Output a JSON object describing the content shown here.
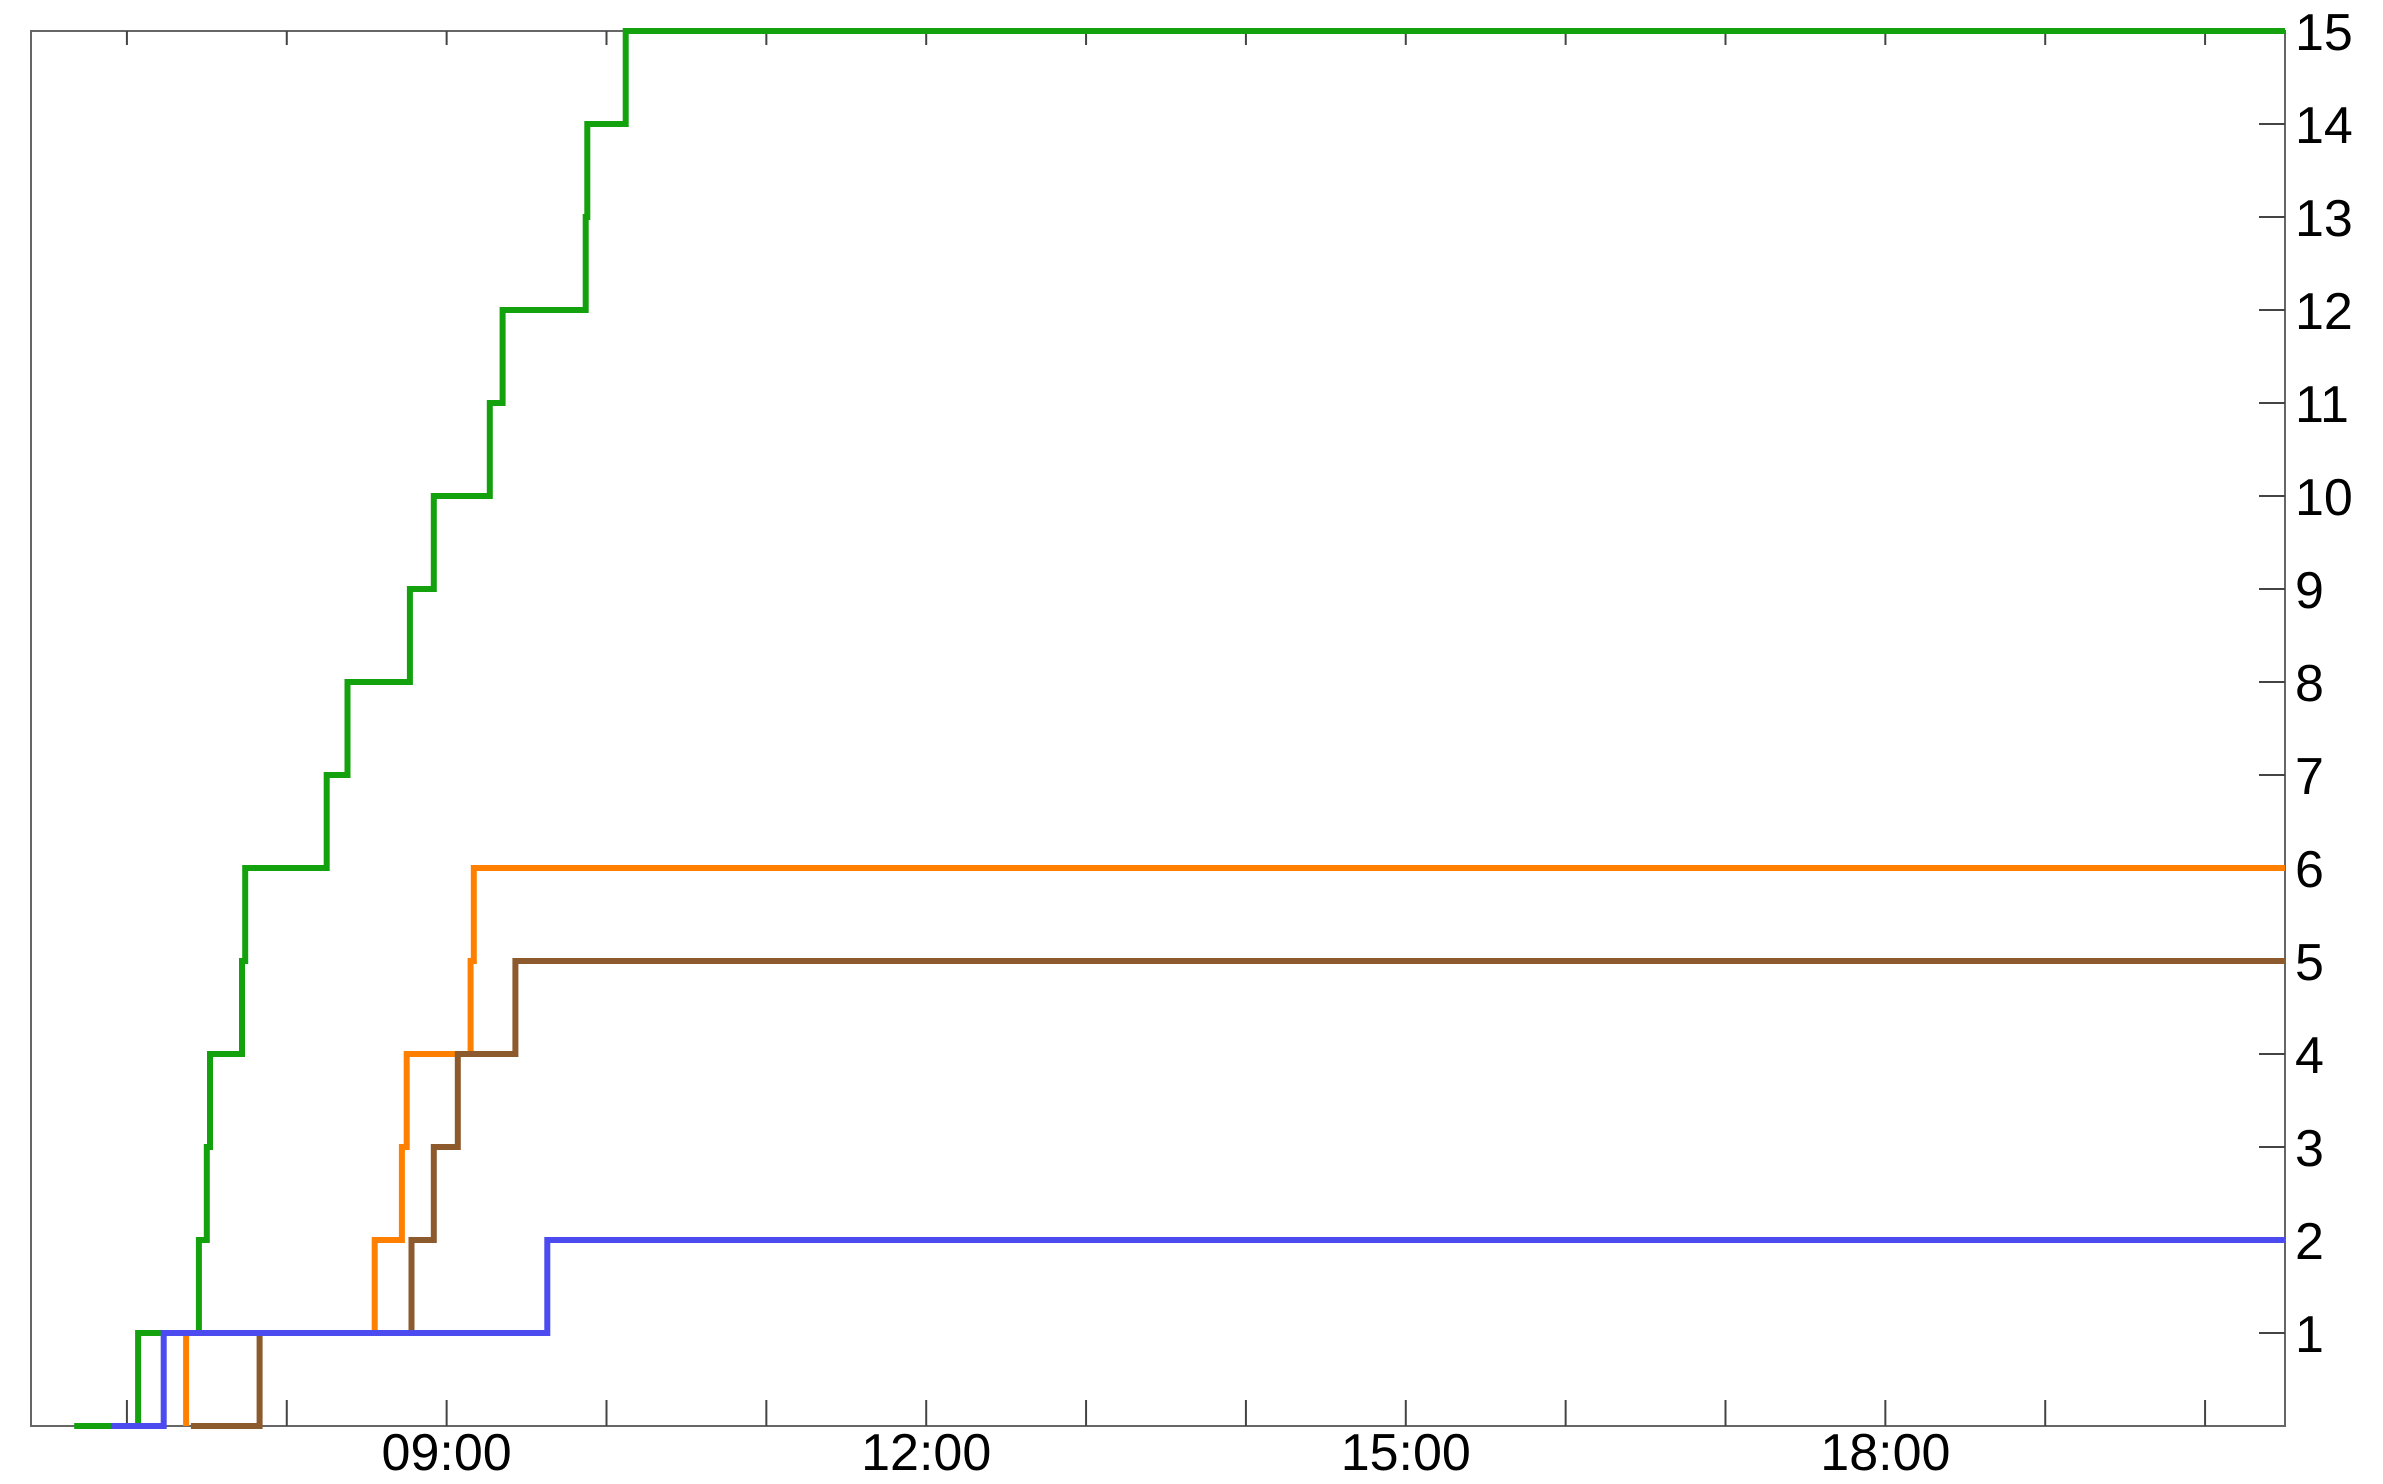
{
  "chart_data": {
    "type": "line",
    "step": true,
    "title": "",
    "xlabel": "",
    "ylabel": "",
    "x_unit": "time of day (hours)",
    "xlim": [
      6.4,
      20.5
    ],
    "ylim": [
      0,
      15
    ],
    "x_ticks": [
      {
        "value": 9,
        "label": "09:00"
      },
      {
        "value": 12,
        "label": "12:00"
      },
      {
        "value": 15,
        "label": "15:00"
      },
      {
        "value": 18,
        "label": "18:00"
      }
    ],
    "y_ticks": [
      {
        "value": 1,
        "label": "1"
      },
      {
        "value": 2,
        "label": "2"
      },
      {
        "value": 3,
        "label": "3"
      },
      {
        "value": 4,
        "label": "4"
      },
      {
        "value": 5,
        "label": "5"
      },
      {
        "value": 6,
        "label": "6"
      },
      {
        "value": 7,
        "label": "7"
      },
      {
        "value": 8,
        "label": "8"
      },
      {
        "value": 9,
        "label": "9"
      },
      {
        "value": 10,
        "label": "10"
      },
      {
        "value": 11,
        "label": "11"
      },
      {
        "value": 12,
        "label": "12"
      },
      {
        "value": 13,
        "label": "13"
      },
      {
        "value": 14,
        "label": "14"
      },
      {
        "value": 15,
        "label": "15"
      }
    ],
    "y_axis_side": "right",
    "grid": false,
    "series": [
      {
        "color": "#13a10e",
        "points": [
          [
            6.67,
            0
          ],
          [
            7.07,
            0
          ],
          [
            7.07,
            1
          ],
          [
            7.45,
            1
          ],
          [
            7.45,
            2
          ],
          [
            7.5,
            2
          ],
          [
            7.5,
            3
          ],
          [
            7.52,
            3
          ],
          [
            7.52,
            4
          ],
          [
            7.72,
            4
          ],
          [
            7.72,
            5
          ],
          [
            7.74,
            5
          ],
          [
            7.74,
            6
          ],
          [
            8.25,
            6
          ],
          [
            8.25,
            7
          ],
          [
            8.38,
            7
          ],
          [
            8.38,
            8
          ],
          [
            8.77,
            8
          ],
          [
            8.77,
            9
          ],
          [
            8.92,
            9
          ],
          [
            8.92,
            10
          ],
          [
            9.27,
            10
          ],
          [
            9.27,
            11
          ],
          [
            9.35,
            11
          ],
          [
            9.35,
            12
          ],
          [
            9.87,
            12
          ],
          [
            9.87,
            13
          ],
          [
            9.88,
            13
          ],
          [
            9.88,
            14
          ],
          [
            10.12,
            14
          ],
          [
            10.12,
            15
          ],
          [
            20.5,
            15
          ]
        ]
      },
      {
        "color": "#ff8000",
        "points": [
          [
            7.37,
            0
          ],
          [
            7.37,
            1
          ],
          [
            8.55,
            1
          ],
          [
            8.55,
            2
          ],
          [
            8.72,
            2
          ],
          [
            8.72,
            3
          ],
          [
            8.75,
            3
          ],
          [
            8.75,
            4
          ],
          [
            9.15,
            4
          ],
          [
            9.15,
            5
          ],
          [
            9.17,
            5
          ],
          [
            9.17,
            6
          ],
          [
            20.5,
            6
          ]
        ]
      },
      {
        "color": "#8c5a2d",
        "points": [
          [
            7.4,
            0
          ],
          [
            7.83,
            0
          ],
          [
            7.83,
            1
          ],
          [
            8.78,
            1
          ],
          [
            8.78,
            2
          ],
          [
            8.92,
            2
          ],
          [
            8.92,
            3
          ],
          [
            9.07,
            3
          ],
          [
            9.07,
            4
          ],
          [
            9.43,
            4
          ],
          [
            9.43,
            5
          ],
          [
            20.5,
            5
          ]
        ]
      },
      {
        "color": "#4b4bf0",
        "points": [
          [
            6.9,
            0
          ],
          [
            7.23,
            0
          ],
          [
            7.23,
            1
          ],
          [
            9.63,
            1
          ],
          [
            9.63,
            2
          ],
          [
            20.5,
            2
          ]
        ]
      }
    ]
  }
}
